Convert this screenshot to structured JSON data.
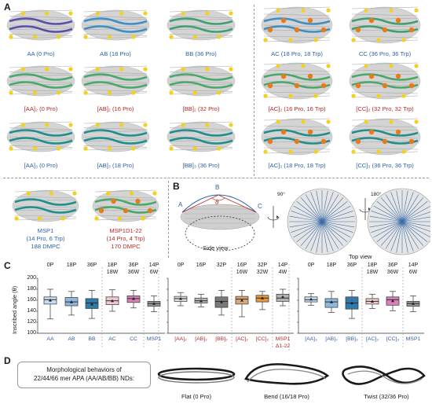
{
  "panels": {
    "A": "A",
    "B": "B",
    "C": "C",
    "D": "D"
  },
  "panelA": {
    "row1": [
      {
        "id": "AA",
        "label": "AA (0 Pro)",
        "color": "blue",
        "helix": "#5b4fa8"
      },
      {
        "id": "AB",
        "label": "AB (18 Pro)",
        "color": "blue",
        "helix": "#3e8fc4"
      },
      {
        "id": "BB",
        "label": "BB (36 Pro)",
        "color": "blue",
        "helix": "#3da06e"
      },
      {
        "id": "AC",
        "label": "AC (18 Pro, 18 Trp)",
        "color": "blue",
        "helix": "#3e8fc4"
      },
      {
        "id": "CC",
        "label": "CC (36 Pro, 36 Trp)",
        "color": "blue",
        "helix": "#3da06e"
      }
    ],
    "row2": [
      {
        "id": "AA2",
        "label": "[AA]₂ (0 Pro)",
        "color": "red",
        "helix": "#4aa86b"
      },
      {
        "id": "AB2",
        "label": "[AB]₂ (16 Pro)",
        "color": "red",
        "helix": "#4aa86b"
      },
      {
        "id": "BB2",
        "label": "[BB]₂ (32 Pro)",
        "color": "red",
        "helix": "#4aa86b"
      },
      {
        "id": "AC2",
        "label": "[AC]₂ (16 Pro, 16 Trp)",
        "color": "red",
        "helix": "#4aa86b"
      },
      {
        "id": "CC2",
        "label": "[CC]₂ (32 Pro, 32 Trp)",
        "color": "red",
        "helix": "#4aa86b"
      }
    ],
    "row3": [
      {
        "id": "AA3",
        "label": "[AA]₃ (0 Pro)",
        "color": "blue",
        "helix": "#1e8f8c"
      },
      {
        "id": "AB3",
        "label": "[AB]₃ (18 Pro)",
        "color": "blue",
        "helix": "#1e8f8c"
      },
      {
        "id": "BB3",
        "label": "[BB]₃ (36 Pro)",
        "color": "blue",
        "helix": "#1e8f8c"
      },
      {
        "id": "AC3",
        "label": "[AC]₃ (18 Pro, 18 Trp)",
        "color": "blue",
        "helix": "#1e8f8c"
      },
      {
        "id": "CC3",
        "label": "[CC]₃ (36 Pro, 36 Trp)",
        "color": "blue",
        "helix": "#1e8f8c"
      }
    ],
    "msp": [
      {
        "id": "MSP1",
        "lines": [
          "MSP1",
          "(14 Pro, 6 Trp)",
          "188 DMPC"
        ],
        "color": "blue",
        "helix": "#1e8f8c"
      },
      {
        "id": "MSP1D1",
        "lines": [
          "MSP1D1-22",
          "(14 Pro, 4 Trp)",
          "170 DMPC"
        ],
        "color": "red",
        "helix": "#4aa86b"
      }
    ]
  },
  "panelB": {
    "points": [
      "A",
      "B",
      "C"
    ],
    "angle_symbol": "θ",
    "rot1": "90°",
    "rot2": "180°",
    "side_view": "Side view",
    "top_view": "Top view"
  },
  "panelC": {
    "ylabel": "Inscribed angle (θ)",
    "yticks": [
      "200",
      "180",
      "160",
      "140",
      "120",
      "100"
    ],
    "groups": [
      {
        "boxes": [
          {
            "cat": "AA",
            "catColor": "blue",
            "top": "0P",
            "top2": "",
            "color": "#c7dcf0",
            "q1": 153,
            "q3": 166,
            "med": 161,
            "lo": 126,
            "hi": 180,
            "mean": 160
          },
          {
            "cat": "AB",
            "catColor": "blue",
            "top": "18P",
            "top2": "",
            "color": "#8fb8dd",
            "q1": 150,
            "q3": 165,
            "med": 157,
            "lo": 133,
            "hi": 176,
            "mean": 157
          },
          {
            "cat": "BB",
            "catColor": "blue",
            "top": "36P",
            "top2": "",
            "color": "#2f7aa8",
            "q1": 145,
            "q3": 163,
            "med": 155,
            "lo": 127,
            "hi": 178,
            "mean": 153
          },
          {
            "cat": "AC",
            "catColor": "blue",
            "top": "18P",
            "top2": "18W",
            "color": "#f1c8cb",
            "q1": 152,
            "q3": 166,
            "med": 159,
            "lo": 140,
            "hi": 179,
            "mean": 159
          },
          {
            "cat": "CC",
            "catColor": "blue",
            "top": "36P",
            "top2": "36W",
            "color": "#d783b8",
            "q1": 156,
            "q3": 168,
            "med": 163,
            "lo": 146,
            "hi": 178,
            "mean": 163
          },
          {
            "cat": "MSP1",
            "catColor": "blue",
            "top": "14P",
            "top2": "6W",
            "color": "#9a9a9a",
            "q1": 149,
            "q3": 158,
            "med": 154,
            "lo": 139,
            "hi": 168,
            "mean": 154
          }
        ]
      },
      {
        "boxes": [
          {
            "cat": "[AA]₂",
            "catColor": "red",
            "top": "0P",
            "top2": "",
            "color": "#dcdcdc",
            "q1": 158,
            "q3": 167,
            "med": 163,
            "lo": 150,
            "hi": 174,
            "mean": 163
          },
          {
            "cat": "[AB]₂",
            "catColor": "red",
            "top": "16P",
            "top2": "",
            "color": "#b5b5b5",
            "q1": 155,
            "q3": 164,
            "med": 159,
            "lo": 148,
            "hi": 171,
            "mean": 159
          },
          {
            "cat": "[BB]₂",
            "catColor": "red",
            "top": "32P",
            "top2": "",
            "color": "#7a7a7a",
            "q1": 147,
            "q3": 166,
            "med": 158,
            "lo": 133,
            "hi": 178,
            "mean": 157
          },
          {
            "cat": "[AC]₂",
            "catColor": "red",
            "top": "16P",
            "top2": "16W",
            "color": "#d9a877",
            "q1": 153,
            "q3": 167,
            "med": 162,
            "lo": 130,
            "hi": 178,
            "mean": 160
          },
          {
            "cat": "[CC]₂",
            "catColor": "red",
            "top": "32P",
            "top2": "32W",
            "color": "#e39840",
            "q1": 157,
            "q3": 169,
            "med": 164,
            "lo": 143,
            "hi": 176,
            "mean": 164
          },
          {
            "cat": "MSP1",
            "cat2": "Δ1-22",
            "catColor": "red",
            "top": "14P",
            "top2": "4W",
            "color": "#b2b2b2",
            "q1": 158,
            "q3": 171,
            "med": 164,
            "lo": 150,
            "hi": 180,
            "mean": 166
          }
        ]
      },
      {
        "boxes": [
          {
            "cat": "[AA]₃",
            "catColor": "blue",
            "top": "0P",
            "top2": "",
            "color": "#c7dcf0",
            "q1": 157,
            "q3": 166,
            "med": 161,
            "lo": 151,
            "hi": 172,
            "mean": 162
          },
          {
            "cat": "[AB]₃",
            "catColor": "blue",
            "top": "18P",
            "top2": "",
            "color": "#8fb8dd",
            "q1": 147,
            "q3": 163,
            "med": 157,
            "lo": 138,
            "hi": 176,
            "mean": 157
          },
          {
            "cat": "[BB]₃",
            "catColor": "blue",
            "top": "36P",
            "top2": "",
            "color": "#2f7aa8",
            "q1": 144,
            "q3": 166,
            "med": 155,
            "lo": 127,
            "hi": 178,
            "mean": 155
          },
          {
            "cat": "[AC]₃",
            "catColor": "blue",
            "top": "18P",
            "top2": "18W",
            "color": "#f1c8cb",
            "q1": 153,
            "q3": 163,
            "med": 158,
            "lo": 145,
            "hi": 171,
            "mean": 158
          },
          {
            "cat": "[CC]₃",
            "catColor": "blue",
            "top": "36P",
            "top2": "36W",
            "color": "#d783b8",
            "q1": 151,
            "q3": 166,
            "med": 161,
            "lo": 141,
            "hi": 176,
            "mean": 159
          },
          {
            "cat": "MSP1",
            "catColor": "blue",
            "top": "14P",
            "top2": "6W",
            "color": "#9a9a9a",
            "q1": 149,
            "q3": 158,
            "med": 154,
            "lo": 139,
            "hi": 168,
            "mean": 154
          }
        ]
      }
    ]
  },
  "chart_data": {
    "type": "box",
    "ylabel": "Inscribed angle (θ)",
    "ylim": [
      100,
      200
    ],
    "categories": [
      "AA",
      "AB",
      "BB",
      "AC",
      "CC",
      "MSP1",
      "[AA]₂",
      "[AB]₂",
      "[BB]₂",
      "[AC]₂",
      "[CC]₂",
      "MSP1 Δ1-22",
      "[AA]₃",
      "[AB]₃",
      "[BB]₃",
      "[AC]₃",
      "[CC]₃",
      "MSP1"
    ],
    "medians": [
      161,
      157,
      155,
      159,
      163,
      154,
      163,
      159,
      158,
      162,
      164,
      164,
      161,
      157,
      155,
      158,
      161,
      154
    ]
  },
  "panelD": {
    "box_lines": [
      "Morphological behaviors of",
      "22/44/66 mer APA (AA/AB/BB) NDs:"
    ],
    "shapes": [
      {
        "label": "Flat (0 Pro)"
      },
      {
        "label": "Bend (16/18 Pro)"
      },
      {
        "label": "Twist (32/36 Pro)"
      }
    ]
  }
}
